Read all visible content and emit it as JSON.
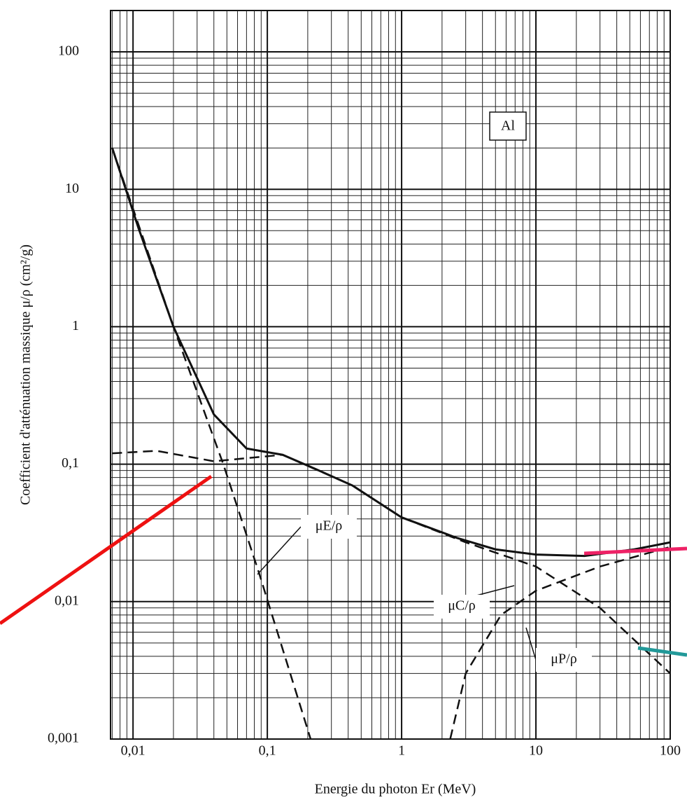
{
  "chart_data": {
    "type": "line",
    "x_label": "Energie du photon Er (MeV)",
    "y_label": "Coefficient d'atténuation massique μ/ρ (cm²/g)",
    "annotation": "Al",
    "log_x": true,
    "log_y": true,
    "grid": true,
    "minor_grid": true,
    "xlim": [
      0.0068,
      100
    ],
    "ylim": [
      0.001,
      200
    ],
    "xticks": [
      {
        "value": 0.01,
        "label": "0,01"
      },
      {
        "value": 0.1,
        "label": "0,1"
      },
      1,
      10,
      100
    ],
    "yticks": [
      {
        "value": 0.001,
        "label": "0,001"
      },
      {
        "value": 0.01,
        "label": "0,01"
      },
      {
        "value": 0.1,
        "label": "0,1"
      },
      1,
      10,
      100
    ],
    "series": [
      {
        "color": "#111111",
        "style": "solid",
        "x": [
          0.007,
          0.011,
          0.02,
          0.04,
          0.07,
          0.13,
          0.23,
          0.43,
          1,
          2.6,
          5,
          10,
          23,
          54,
          100
        ],
        "values": [
          20,
          5.2,
          1.0,
          0.23,
          0.13,
          0.117,
          0.092,
          0.07,
          0.041,
          0.029,
          0.024,
          0.022,
          0.0215,
          0.024,
          0.027
        ]
      },
      {
        "name": "μE/ρ",
        "color": "#111111",
        "style": "dashed",
        "x": [
          0.007,
          0.02,
          0.047,
          0.087,
          0.21
        ],
        "values": [
          20,
          1.0,
          0.1,
          0.016,
          0.001
        ]
      },
      {
        "name": "μC/ρ",
        "color": "#111111",
        "style": "dashed",
        "x": [
          0.007,
          0.015,
          0.04,
          0.13,
          0.43,
          1,
          3,
          10,
          30,
          100
        ],
        "values": [
          0.12,
          0.125,
          0.105,
          0.117,
          0.07,
          0.041,
          0.027,
          0.018,
          0.009,
          0.003
        ]
      },
      {
        "name": "μP/ρ",
        "color": "#111111",
        "style": "dashed",
        "x": [
          2.3,
          3,
          5.5,
          10,
          30,
          100
        ],
        "values": [
          0.001,
          0.003,
          0.008,
          0.012,
          0.018,
          0.025
        ]
      }
    ]
  }
}
